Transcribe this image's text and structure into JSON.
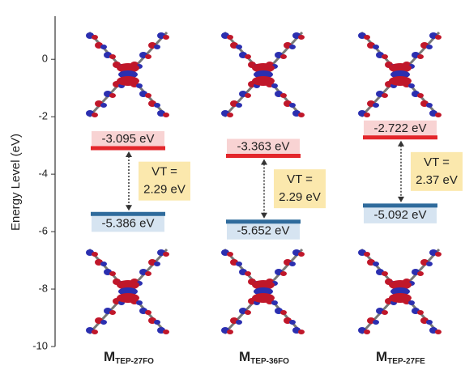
{
  "chart_data": {
    "type": "energy-level",
    "y_label": "Energy Level (eV)",
    "ylim": [
      -10,
      1.5
    ],
    "yticks": [
      0,
      -2,
      -4,
      -6,
      -8,
      -10
    ],
    "categories": [
      {
        "main": "M",
        "sub": "TEP-27FO"
      },
      {
        "main": "M",
        "sub": "TEP-36FO"
      },
      {
        "main": "M",
        "sub": "TEP-27FE"
      }
    ],
    "series": [
      {
        "color": "#e3262b",
        "label_bg": "#f8d3d3",
        "values": [
          -3.095,
          -3.363,
          -2.722
        ],
        "value_labels": [
          "-3.095 eV",
          "-3.363 eV",
          "-2.722 eV"
        ]
      },
      {
        "color": "#2f6b9c",
        "label_bg": "#d6e4f1",
        "values": [
          -5.386,
          -5.652,
          -5.092
        ],
        "value_labels": [
          "-5.386 eV",
          "-5.652 eV",
          "-5.092 eV"
        ]
      }
    ],
    "gap_label": "VT =",
    "gap": {
      "color": "#fbe8ad",
      "values": [
        2.29,
        2.29,
        2.37
      ],
      "value_labels": [
        "2.29 eV",
        "2.29 eV",
        "2.37 eV"
      ]
    }
  }
}
